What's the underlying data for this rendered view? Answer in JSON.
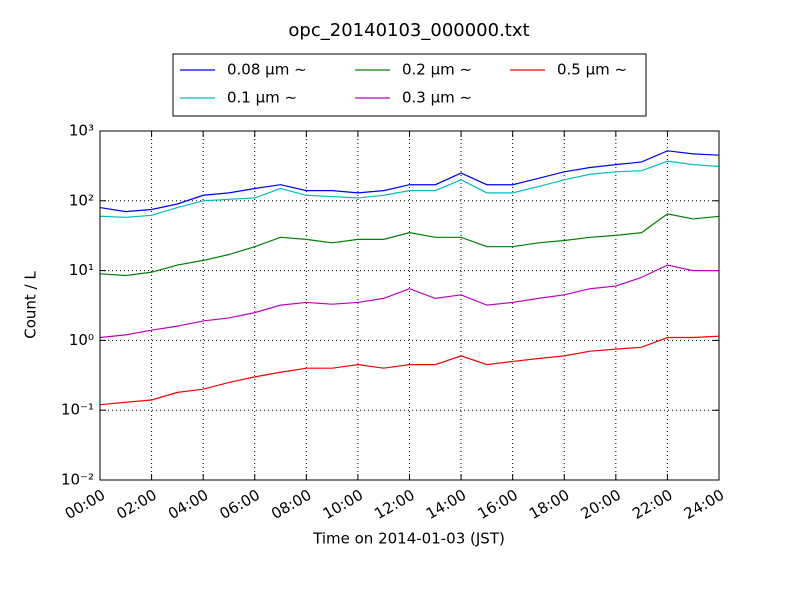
{
  "chart_data": {
    "type": "line",
    "title": "opc_20140103_000000.txt",
    "x_label": "Time on 2014-01-03 (JST)",
    "y_label": "Count / L",
    "yscale": "log",
    "grid": true,
    "legend": "upper center",
    "xlim": [
      0,
      24
    ],
    "ylim": [
      0.01,
      1000
    ],
    "xticks": [
      {
        "value": 0,
        "label": "00:00"
      },
      {
        "value": 2,
        "label": "02:00"
      },
      {
        "value": 4,
        "label": "04:00"
      },
      {
        "value": 6,
        "label": "06:00"
      },
      {
        "value": 8,
        "label": "08:00"
      },
      {
        "value": 10,
        "label": "10:00"
      },
      {
        "value": 12,
        "label": "12:00"
      },
      {
        "value": 14,
        "label": "14:00"
      },
      {
        "value": 16,
        "label": "16:00"
      },
      {
        "value": 18,
        "label": "18:00"
      },
      {
        "value": 20,
        "label": "20:00"
      },
      {
        "value": 22,
        "label": "22:00"
      },
      {
        "value": 24,
        "label": "24:00"
      }
    ],
    "yticks": [
      {
        "value": 0.01,
        "label": "10⁻²"
      },
      {
        "value": 0.1,
        "label": "10⁻¹"
      },
      {
        "value": 1,
        "label": "10⁰"
      },
      {
        "value": 10,
        "label": "10¹"
      },
      {
        "value": 100,
        "label": "10²"
      },
      {
        "value": 1000,
        "label": "10³"
      }
    ],
    "x": [
      0,
      1,
      2,
      3,
      4,
      5,
      6,
      7,
      8,
      9,
      10,
      11,
      12,
      13,
      14,
      15,
      16,
      17,
      18,
      19,
      20,
      21,
      22,
      23,
      24
    ],
    "series": [
      {
        "name": "0.08 μm ∼",
        "color": "#0000ff",
        "values": [
          80,
          70,
          75,
          90,
          120,
          130,
          150,
          170,
          140,
          140,
          130,
          140,
          170,
          170,
          250,
          170,
          170,
          210,
          260,
          300,
          330,
          360,
          520,
          470,
          450
        ]
      },
      {
        "name": "0.1 μm ∼",
        "color": "#00bfbf",
        "values": [
          60,
          58,
          62,
          80,
          100,
          105,
          110,
          150,
          120,
          115,
          110,
          120,
          140,
          140,
          200,
          130,
          130,
          160,
          200,
          240,
          260,
          270,
          370,
          330,
          310
        ]
      },
      {
        "name": "0.2 μm ∼",
        "color": "#008000",
        "values": [
          9,
          8.5,
          9.5,
          12,
          14,
          17,
          22,
          30,
          28,
          25,
          28,
          28,
          35,
          30,
          30,
          22,
          22,
          25,
          27,
          30,
          32,
          35,
          65,
          55,
          60
        ]
      },
      {
        "name": "0.3 μm ∼",
        "color": "#bf00bf",
        "values": [
          1.1,
          1.2,
          1.4,
          1.6,
          1.9,
          2.1,
          2.5,
          3.2,
          3.5,
          3.3,
          3.5,
          4,
          5.5,
          4,
          4.5,
          3.2,
          3.5,
          4,
          4.5,
          5.5,
          6,
          8,
          12,
          10,
          10
        ]
      },
      {
        "name": "0.5 μm ∼",
        "color": "#ff0000",
        "values": [
          0.12,
          0.13,
          0.14,
          0.18,
          0.2,
          0.25,
          0.3,
          0.35,
          0.4,
          0.4,
          0.45,
          0.4,
          0.45,
          0.45,
          0.6,
          0.45,
          0.5,
          0.55,
          0.6,
          0.7,
          0.75,
          0.8,
          1.1,
          1.1,
          1.15
        ]
      }
    ]
  }
}
